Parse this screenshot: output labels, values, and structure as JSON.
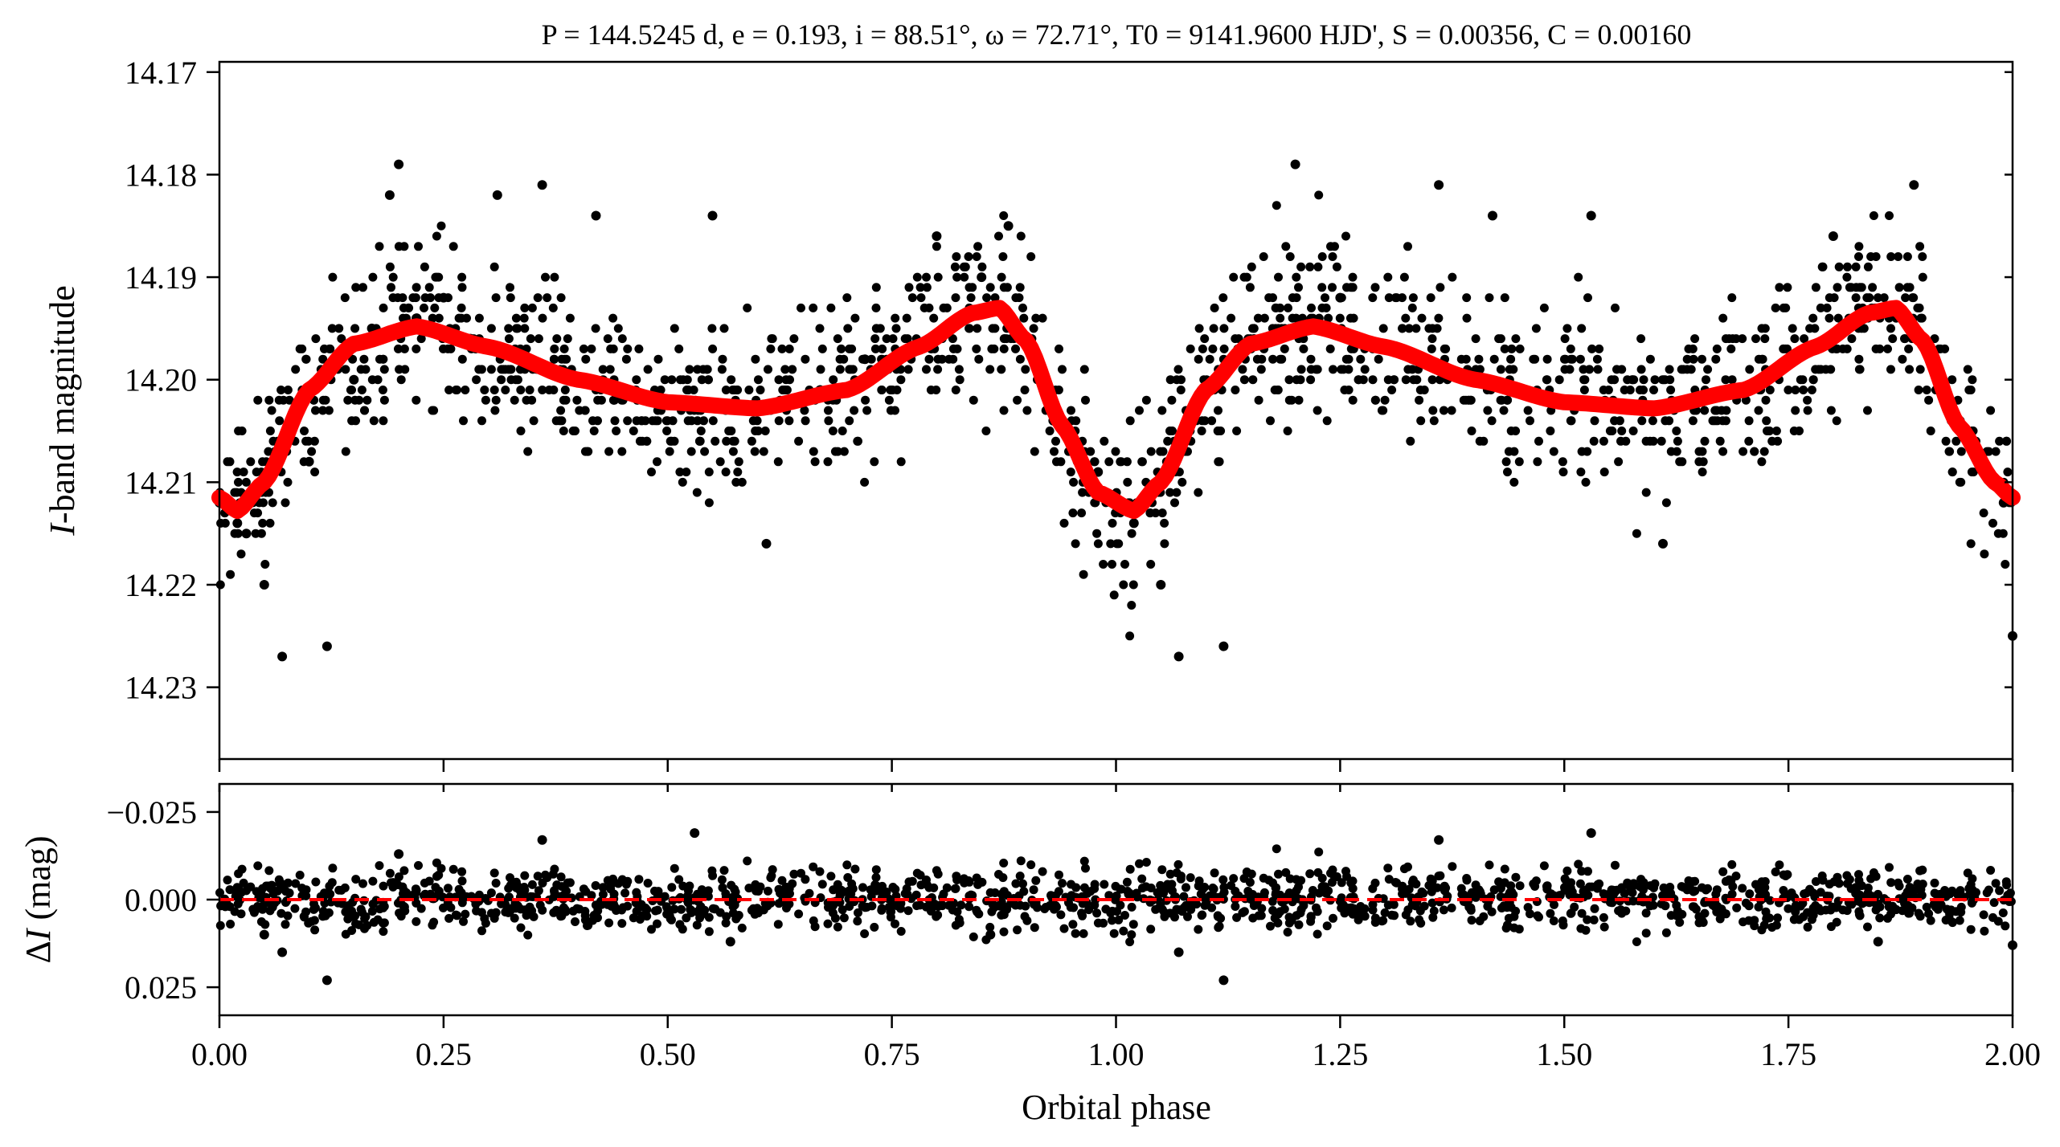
{
  "chart_data": [
    {
      "panel": "top",
      "type": "scatter",
      "title": "P = 144.5245 d, e = 0.193, i = 88.51°, ω = 72.71°, T0 = 9141.9600 HJD', S = 0.00356, C = 0.00160",
      "ylabel": "I-band magnitude",
      "xlim": [
        0.0,
        2.0
      ],
      "ylim": [
        14.237,
        14.169
      ],
      "y_inverted": true,
      "yticks": [
        14.17,
        14.18,
        14.19,
        14.2,
        14.21,
        14.22,
        14.23
      ],
      "ytick_labels": [
        "14.17",
        "14.18",
        "14.19",
        "14.20",
        "14.21",
        "14.22",
        "14.23"
      ],
      "grid": false,
      "series": [
        {
          "kind": "scatter",
          "color": "#000000",
          "description_points": [
            [
              0.0,
              14.212
            ],
            [
              0.02,
              14.214
            ],
            [
              0.03,
              14.215
            ],
            [
              0.05,
              14.22
            ],
            [
              0.07,
              14.227
            ],
            [
              0.1,
              14.208
            ],
            [
              0.12,
              14.226
            ],
            [
              0.15,
              14.2
            ],
            [
              0.17,
              14.195
            ],
            [
              0.19,
              14.182
            ],
            [
              0.2,
              14.179
            ],
            [
              0.22,
              14.194
            ],
            [
              0.25,
              14.192
            ],
            [
              0.28,
              14.196
            ],
            [
              0.31,
              14.182
            ],
            [
              0.36,
              14.181
            ],
            [
              0.42,
              14.184
            ],
            [
              0.5,
              14.202
            ],
            [
              0.55,
              14.184
            ],
            [
              0.61,
              14.216
            ],
            [
              0.67,
              14.201
            ],
            [
              0.72,
              14.198
            ],
            [
              0.8,
              14.186
            ],
            [
              0.85,
              14.19
            ],
            [
              0.88,
              14.185
            ],
            [
              0.93,
              14.204
            ],
            [
              0.98,
              14.209
            ],
            [
              1.0,
              14.212
            ],
            [
              1.02,
              14.214
            ],
            [
              1.05,
              14.22
            ],
            [
              1.07,
              14.227
            ],
            [
              1.12,
              14.226
            ],
            [
              1.2,
              14.179
            ],
            [
              1.25,
              14.192
            ],
            [
              1.36,
              14.181
            ],
            [
              1.42,
              14.184
            ],
            [
              1.53,
              14.184
            ],
            [
              1.61,
              14.216
            ],
            [
              1.8,
              14.186
            ],
            [
              1.89,
              14.181
            ],
            [
              1.99,
              14.212
            ],
            [
              2.0,
              14.225
            ]
          ]
        },
        {
          "kind": "line",
          "color": "#ff0000",
          "x": [
            0.0,
            0.02,
            0.05,
            0.1,
            0.15,
            0.22,
            0.3,
            0.4,
            0.5,
            0.6,
            0.7,
            0.78,
            0.84,
            0.87,
            0.9,
            0.94,
            0.98,
            1.02,
            1.05,
            1.1,
            1.15,
            1.22,
            1.3,
            1.4,
            1.5,
            1.6,
            1.7,
            1.78,
            1.84,
            1.87,
            1.9,
            1.94,
            1.98,
            2.0
          ],
          "y": [
            14.2115,
            14.2128,
            14.21,
            14.201,
            14.1965,
            14.1948,
            14.1968,
            14.2,
            14.2022,
            14.2028,
            14.201,
            14.1968,
            14.1935,
            14.193,
            14.1962,
            14.2045,
            14.211,
            14.2128,
            14.21,
            14.201,
            14.1965,
            14.1948,
            14.1968,
            14.2,
            14.2022,
            14.2028,
            14.201,
            14.1968,
            14.1935,
            14.193,
            14.1962,
            14.2045,
            14.21,
            14.2115
          ]
        }
      ]
    },
    {
      "panel": "bottom",
      "type": "scatter",
      "xlabel": "Orbital phase",
      "ylabel": "ΔI (mag)",
      "xlim": [
        0.0,
        2.0
      ],
      "xticks": [
        0.0,
        0.25,
        0.5,
        0.75,
        1.0,
        1.25,
        1.5,
        1.75,
        2.0
      ],
      "xtick_labels": [
        "0.00",
        "0.25",
        "0.50",
        "0.75",
        "1.00",
        "1.25",
        "1.50",
        "1.75",
        "2.00"
      ],
      "ylim": [
        0.033,
        -0.033
      ],
      "y_inverted": true,
      "yticks": [
        -0.025,
        0.0,
        0.025
      ],
      "ytick_labels": [
        "−0.025",
        "0.000",
        "0.025"
      ],
      "grid": false,
      "series": [
        {
          "kind": "scatter",
          "color": "#000000",
          "description_points": [
            [
              0.05,
              0.01
            ],
            [
              0.07,
              0.015
            ],
            [
              0.12,
              0.023
            ],
            [
              0.2,
              -0.013
            ],
            [
              0.36,
              -0.017
            ],
            [
              0.53,
              -0.019
            ],
            [
              0.57,
              0.012
            ],
            [
              0.86,
              0.01
            ],
            [
              1.07,
              0.015
            ],
            [
              1.12,
              0.023
            ],
            [
              1.36,
              -0.017
            ],
            [
              1.53,
              -0.019
            ],
            [
              1.85,
              0.012
            ],
            [
              2.0,
              0.013
            ]
          ]
        },
        {
          "kind": "reference_line",
          "color": "#ff0000",
          "style": "dashed",
          "y": 0.0
        }
      ]
    }
  ]
}
